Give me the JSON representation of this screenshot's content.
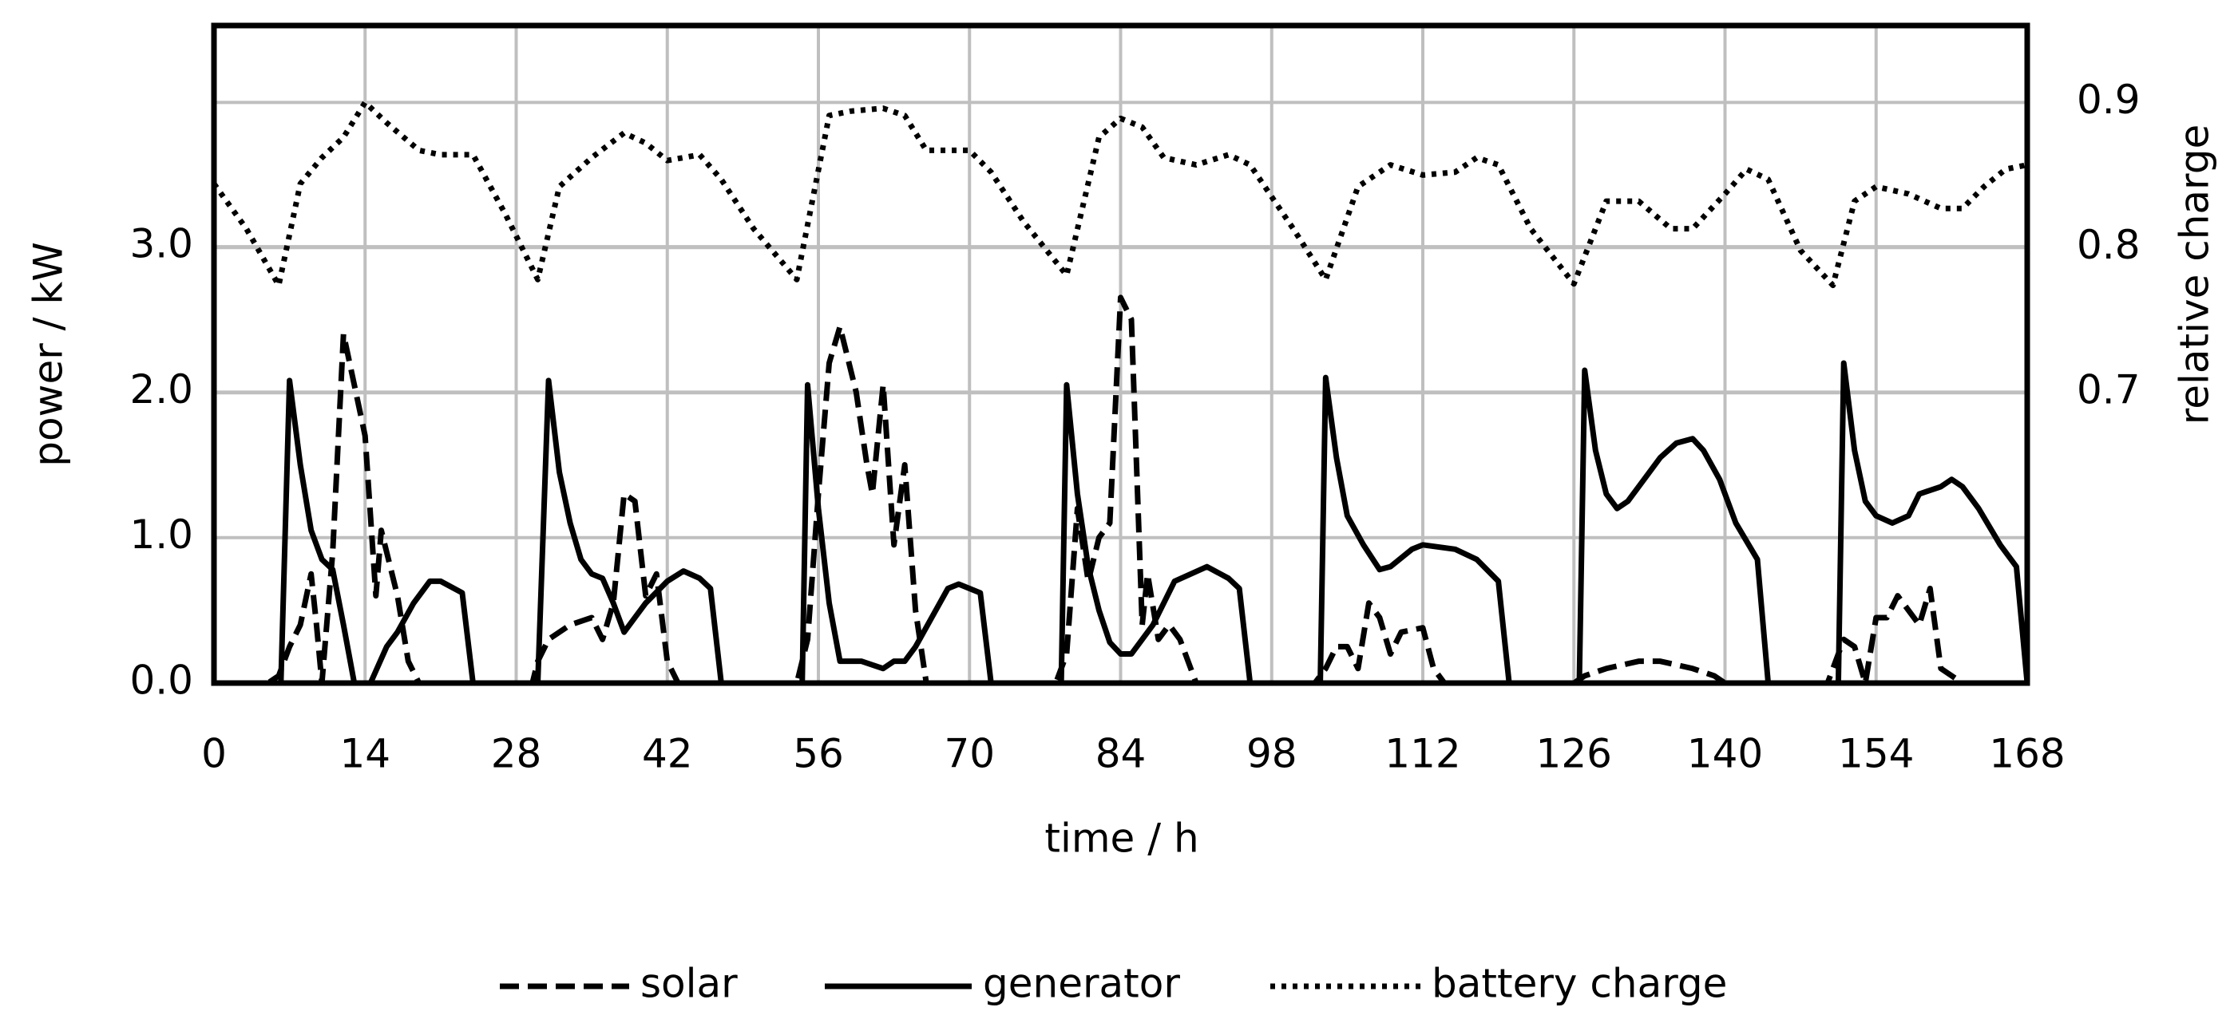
{
  "chart_data": {
    "type": "line",
    "xlabel": "time / h",
    "ylabel": "power / kW",
    "y2label": "relative charge",
    "xlim": [
      0,
      168
    ],
    "xticks": [
      0,
      14,
      28,
      42,
      56,
      70,
      84,
      98,
      112,
      126,
      140,
      154,
      168
    ],
    "ylim": [
      0,
      4.52
    ],
    "yticks": [
      {
        "value": 0,
        "label": "0.0"
      },
      {
        "value": 1,
        "label": "1.0"
      },
      {
        "value": 2,
        "label": "2.0"
      },
      {
        "value": 3,
        "label": "3.0"
      }
    ],
    "y2lim": [
      0.5,
      0.953
    ],
    "y2ticks": [
      0.7,
      0.8,
      0.9
    ],
    "grid": true,
    "legend": "bottom",
    "series": [
      {
        "name": "solar",
        "color": "#000000",
        "dash": "dashed",
        "x": [
          0,
          5,
          6,
          7,
          8,
          9,
          9.5,
          10,
          11,
          12,
          13,
          14,
          15,
          15.5,
          17,
          18,
          19,
          29.5,
          30,
          31,
          33,
          35,
          36,
          37,
          38,
          39,
          40,
          41,
          42,
          43,
          54,
          55,
          56,
          57,
          58,
          59.5,
          60.5,
          61,
          62,
          63,
          64,
          65,
          66,
          78,
          79,
          80,
          81,
          82,
          83,
          84,
          85,
          86,
          86.5,
          87.5,
          88.5,
          89.5,
          91,
          102,
          103,
          104,
          105,
          106,
          107,
          108,
          109,
          110,
          112,
          113,
          114,
          126,
          127,
          129,
          132,
          134,
          137,
          139,
          140,
          149.5,
          150,
          151,
          152,
          153,
          154,
          155,
          156,
          157.5,
          158,
          159,
          160,
          161,
          162,
          168
        ],
        "values": [
          0,
          0,
          0.05,
          0.25,
          0.4,
          0.75,
          0.4,
          0,
          0.9,
          2.4,
          2.05,
          1.7,
          0.6,
          1.05,
          0.6,
          0.15,
          0,
          0,
          0.15,
          0.3,
          0.4,
          0.45,
          0.3,
          0.55,
          1.3,
          1.25,
          0.6,
          0.75,
          0.15,
          0,
          0,
          0.3,
          1.3,
          2.2,
          2.45,
          2.0,
          1.5,
          1.3,
          2.05,
          0.95,
          1.5,
          0.5,
          0,
          0,
          0.2,
          1.2,
          0.7,
          1.0,
          1.1,
          2.65,
          2.5,
          0.4,
          0.75,
          0.3,
          0.4,
          0.3,
          0,
          0,
          0.1,
          0.25,
          0.25,
          0.1,
          0.55,
          0.45,
          0.2,
          0.35,
          0.38,
          0.1,
          0,
          0,
          0.05,
          0.1,
          0.15,
          0.15,
          0.1,
          0.05,
          0,
          0,
          0.1,
          0.3,
          0.25,
          0,
          0.45,
          0.45,
          0.6,
          0.45,
          0.4,
          0.65,
          0.1,
          0.05,
          0,
          0
        ]
      },
      {
        "name": "generator",
        "color": "#000000",
        "dash": "solid",
        "x": [
          0,
          6.2,
          7,
          8,
          9,
          10,
          11,
          12,
          13,
          14.5,
          16,
          17,
          18.5,
          20,
          21,
          23,
          24,
          30,
          31,
          32,
          33,
          34,
          35,
          36,
          37,
          38,
          39,
          40,
          42,
          43.5,
          45,
          46,
          47,
          54.5,
          55,
          56,
          57,
          58,
          60,
          62,
          63,
          64,
          65,
          66.5,
          68,
          69,
          71,
          72,
          78.5,
          79,
          80,
          81,
          82,
          83,
          84,
          85,
          87,
          89,
          90.5,
          92,
          94,
          95,
          96,
          102.5,
          103,
          104,
          105,
          106.5,
          108,
          109,
          111,
          112,
          115,
          117,
          119,
          120,
          126.5,
          127,
          128,
          129,
          130,
          131,
          132.5,
          134,
          135.5,
          137,
          138,
          139.5,
          141,
          143,
          144,
          150.5,
          151,
          152,
          153,
          154,
          155.5,
          157,
          158,
          160,
          161,
          162,
          163.5,
          165.5,
          167,
          168
        ],
        "values": [
          0,
          0,
          2.08,
          1.5,
          1.05,
          0.85,
          0.78,
          0.4,
          0,
          0,
          0.25,
          0.35,
          0.55,
          0.7,
          0.7,
          0.62,
          0,
          0,
          2.08,
          1.45,
          1.1,
          0.85,
          0.75,
          0.72,
          0.55,
          0.35,
          0.45,
          0.55,
          0.7,
          0.77,
          0.72,
          0.65,
          0,
          0,
          2.05,
          1.2,
          0.55,
          0.15,
          0.15,
          0.1,
          0.15,
          0.15,
          0.25,
          0.45,
          0.65,
          0.68,
          0.62,
          0,
          0,
          2.05,
          1.3,
          0.8,
          0.5,
          0.28,
          0.2,
          0.2,
          0.4,
          0.7,
          0.75,
          0.8,
          0.72,
          0.65,
          0,
          0,
          2.1,
          1.55,
          1.15,
          0.95,
          0.78,
          0.8,
          0.92,
          0.95,
          0.92,
          0.85,
          0.7,
          0,
          0,
          2.15,
          1.6,
          1.3,
          1.2,
          1.25,
          1.4,
          1.55,
          1.65,
          1.68,
          1.6,
          1.4,
          1.1,
          0.85,
          0,
          0,
          2.2,
          1.6,
          1.25,
          1.15,
          1.1,
          1.15,
          1.3,
          1.35,
          1.4,
          1.35,
          1.2,
          0.95,
          0.8,
          0
        ]
      },
      {
        "name": "battery charge",
        "color": "#000000",
        "dash": "dotted",
        "axis": "y2",
        "x": [
          0,
          3,
          6,
          8,
          10,
          12,
          14,
          16,
          19,
          21,
          24,
          27,
          30,
          32,
          35,
          38,
          40,
          42,
          45,
          47,
          50,
          54,
          57,
          59,
          62,
          64,
          66,
          70,
          72,
          75,
          79,
          82,
          84,
          86,
          88,
          91,
          94,
          96,
          100,
          103,
          106,
          109,
          112,
          115,
          117,
          119,
          122,
          126,
          129,
          132,
          135,
          137,
          140,
          142,
          144,
          147,
          150,
          152,
          154,
          157,
          160,
          162,
          164,
          166,
          168
        ],
        "values": [
          0.844,
          0.813,
          0.774,
          0.844,
          0.862,
          0.876,
          0.9,
          0.886,
          0.867,
          0.864,
          0.864,
          0.823,
          0.778,
          0.842,
          0.862,
          0.879,
          0.872,
          0.86,
          0.864,
          0.847,
          0.813,
          0.778,
          0.891,
          0.894,
          0.896,
          0.891,
          0.867,
          0.867,
          0.852,
          0.818,
          0.781,
          0.876,
          0.889,
          0.883,
          0.862,
          0.857,
          0.864,
          0.857,
          0.813,
          0.778,
          0.842,
          0.857,
          0.85,
          0.852,
          0.862,
          0.857,
          0.813,
          0.775,
          0.832,
          0.832,
          0.813,
          0.813,
          0.837,
          0.854,
          0.847,
          0.798,
          0.774,
          0.832,
          0.842,
          0.837,
          0.827,
          0.827,
          0.842,
          0.854,
          0.857
        ]
      }
    ]
  }
}
